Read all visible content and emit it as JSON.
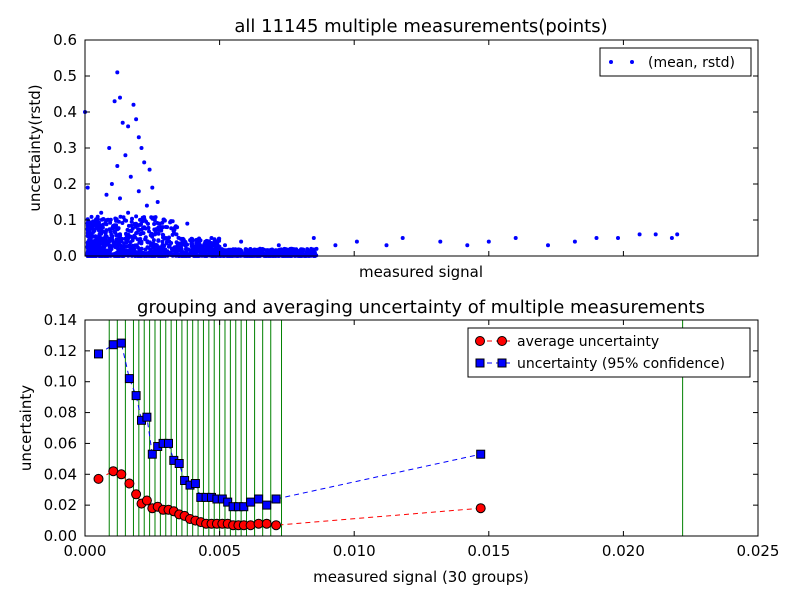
{
  "chart_data": [
    {
      "type": "scatter",
      "title": "all 11145 multiple measurements(points)",
      "xlabel": "measured signal",
      "ylabel": "uncertainty(rstd)",
      "xlim": [
        0.0,
        0.025
      ],
      "ylim": [
        0.0,
        0.6
      ],
      "yticks": [
        "0.0",
        "0.1",
        "0.2",
        "0.3",
        "0.4",
        "0.5",
        "0.6"
      ],
      "x_tick_labels_shown": false,
      "grid": false,
      "legend": "top-right",
      "series": [
        {
          "name": "(mean, rstd)",
          "color": "#0000ff",
          "marker": "point",
          "x": [
            0.0,
            0.0001,
            0.0009,
            0.0012,
            0.0011,
            0.0013,
            0.0014,
            0.0016,
            0.0018,
            0.0019,
            0.002,
            0.0021,
            0.0022,
            0.0024,
            0.0025,
            0.0027,
            0.0012,
            0.0015,
            0.0017,
            0.002,
            0.0023,
            0.0008,
            0.0006,
            0.0004,
            0.001,
            0.0013,
            0.0016,
            0.0019,
            0.0022,
            0.0026,
            0.003,
            0.0034,
            0.0038,
            0.0042,
            0.0047,
            0.0052,
            0.0058,
            0.0065,
            0.0072,
            0.0085,
            0.0093,
            0.0101,
            0.0112,
            0.0118,
            0.0132,
            0.0142,
            0.015,
            0.016,
            0.0172,
            0.0182,
            0.019,
            0.0198,
            0.0206,
            0.0212,
            0.0218,
            0.022
          ],
          "y": [
            0.4,
            0.19,
            0.3,
            0.51,
            0.43,
            0.44,
            0.37,
            0.36,
            0.42,
            0.38,
            0.33,
            0.3,
            0.26,
            0.24,
            0.19,
            0.15,
            0.25,
            0.28,
            0.22,
            0.18,
            0.14,
            0.17,
            0.12,
            0.1,
            0.2,
            0.16,
            0.12,
            0.11,
            0.08,
            0.06,
            0.05,
            0.06,
            0.09,
            0.04,
            0.05,
            0.03,
            0.04,
            0.02,
            0.03,
            0.05,
            0.03,
            0.04,
            0.03,
            0.05,
            0.04,
            0.03,
            0.04,
            0.05,
            0.03,
            0.04,
            0.05,
            0.05,
            0.06,
            0.06,
            0.05,
            0.06
          ]
        }
      ]
    },
    {
      "type": "line",
      "title": "grouping and averaging uncertainty of multiple measurements",
      "xlabel": "measured signal (30 groups)",
      "ylabel": "uncertainty",
      "xlim": [
        0.0,
        0.025
      ],
      "ylim": [
        0.0,
        0.14
      ],
      "xticks": [
        "0.000",
        "0.005",
        "0.010",
        "0.015",
        "0.020",
        "0.025"
      ],
      "yticks": [
        "0.00",
        "0.02",
        "0.04",
        "0.06",
        "0.08",
        "0.10",
        "0.12",
        "0.14"
      ],
      "grid": false,
      "legend": "top-right",
      "group_boundaries": [
        0.0,
        0.0009,
        0.0012,
        0.0015,
        0.0018,
        0.002,
        0.0022,
        0.0024,
        0.0026,
        0.0028,
        0.003,
        0.0032,
        0.0034,
        0.0036,
        0.0038,
        0.004,
        0.0042,
        0.0044,
        0.0046,
        0.0048,
        0.005,
        0.0052,
        0.0054,
        0.0056,
        0.0058,
        0.006,
        0.0063,
        0.0066,
        0.0069,
        0.0073,
        0.0222
      ],
      "group_boundary_color": "#008000",
      "x": [
        0.0005,
        0.00105,
        0.00135,
        0.00165,
        0.0019,
        0.0021,
        0.0023,
        0.0025,
        0.0027,
        0.0029,
        0.0031,
        0.0033,
        0.0035,
        0.0037,
        0.0039,
        0.0041,
        0.0043,
        0.0045,
        0.0047,
        0.0049,
        0.0051,
        0.0053,
        0.0055,
        0.0057,
        0.0059,
        0.00615,
        0.00645,
        0.00675,
        0.0071,
        0.0147
      ],
      "series": [
        {
          "name": "average uncertainty",
          "color": "#ff0000",
          "marker": "circle",
          "values": [
            0.037,
            0.042,
            0.04,
            0.034,
            0.027,
            0.021,
            0.023,
            0.018,
            0.019,
            0.017,
            0.017,
            0.016,
            0.014,
            0.013,
            0.011,
            0.01,
            0.009,
            0.008,
            0.008,
            0.008,
            0.008,
            0.008,
            0.007,
            0.007,
            0.007,
            0.007,
            0.008,
            0.008,
            0.007,
            0.018
          ]
        },
        {
          "name": "uncertainty (95% confidence)",
          "color": "#0000ff",
          "marker": "square",
          "values": [
            0.118,
            0.124,
            0.125,
            0.102,
            0.091,
            0.075,
            0.077,
            0.053,
            0.058,
            0.06,
            0.06,
            0.049,
            0.047,
            0.036,
            0.033,
            0.034,
            0.025,
            0.025,
            0.025,
            0.024,
            0.024,
            0.022,
            0.019,
            0.019,
            0.019,
            0.022,
            0.024,
            0.02,
            0.024,
            0.053
          ]
        }
      ]
    }
  ]
}
